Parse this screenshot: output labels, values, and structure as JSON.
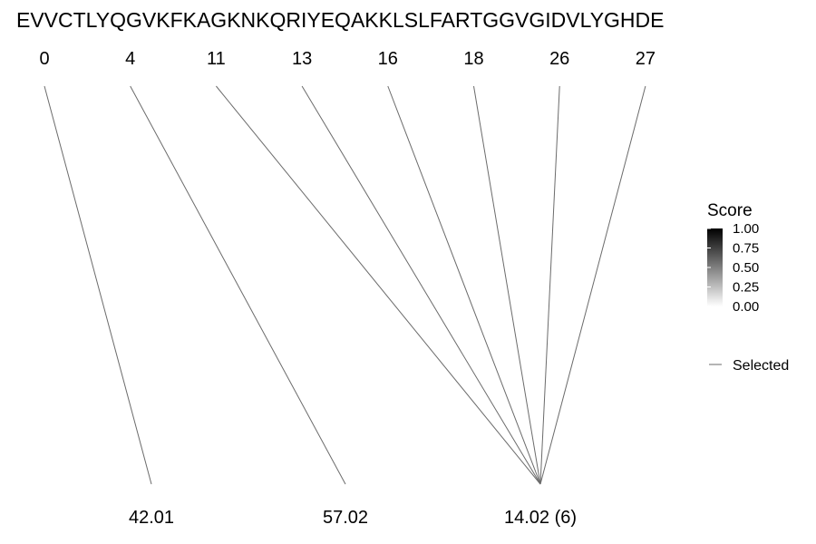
{
  "sequence": "EVVCTLYQGVKFKAGKNKQRIYEQAKKLSLFARTGGVGIDVLYGHDE",
  "positions": [
    "0",
    "4",
    "11",
    "13",
    "16",
    "18",
    "26",
    "27"
  ],
  "bottom_labels": [
    "42.01",
    "57.02",
    "14.02 (6)"
  ],
  "links": [
    {
      "from": 0,
      "to": 0
    },
    {
      "from": 1,
      "to": 1
    },
    {
      "from": 2,
      "to": 2
    },
    {
      "from": 3,
      "to": 2
    },
    {
      "from": 4,
      "to": 2
    },
    {
      "from": 5,
      "to": 2
    },
    {
      "from": 6,
      "to": 2
    },
    {
      "from": 7,
      "to": 2
    }
  ],
  "line_color": "#6b6b6b",
  "legend": {
    "title": "Score",
    "ticks": [
      "1.00",
      "0.75",
      "0.50",
      "0.25",
      "0.00"
    ],
    "gradient": [
      "#000000",
      "#ffffff"
    ],
    "selected_label": "Selected"
  }
}
